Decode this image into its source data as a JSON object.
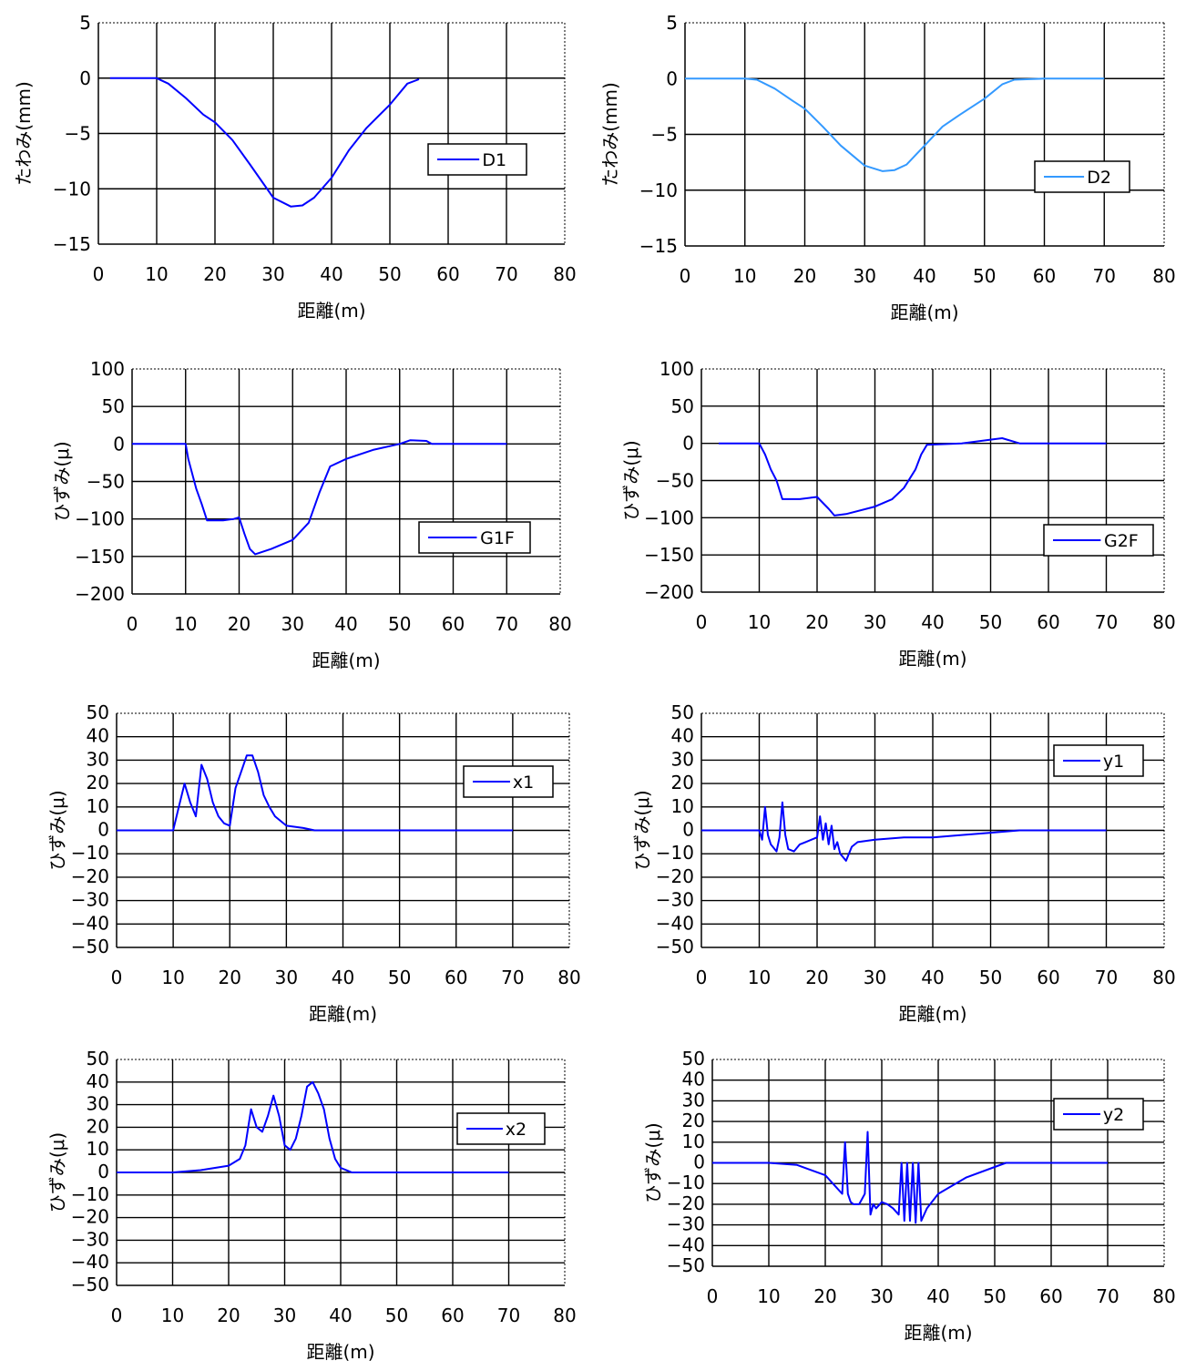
{
  "chart_data": [
    {
      "type": "line",
      "xlabel": "距離(m)",
      "ylabel": "たわみ(mm)",
      "xlim": [
        0,
        80
      ],
      "xticks": [
        0,
        10,
        20,
        30,
        40,
        50,
        60,
        70,
        80
      ],
      "ylim": [
        -15,
        5
      ],
      "yticks": [
        5,
        0,
        -5,
        -10,
        -15
      ],
      "grid": true,
      "legend_position": "right",
      "series": [
        {
          "name": "D1",
          "color": "#0000ff",
          "x": [
            2,
            8,
            10,
            12,
            15,
            18,
            20,
            23,
            26,
            30,
            33,
            35,
            37,
            40,
            43,
            46,
            50,
            53,
            55
          ],
          "y": [
            0,
            0,
            0,
            -0.5,
            -1.8,
            -3.3,
            -4,
            -5.6,
            -7.8,
            -10.8,
            -11.6,
            -11.5,
            -10.8,
            -9,
            -6.5,
            -4.5,
            -2.4,
            -0.5,
            -0.1
          ]
        }
      ]
    },
    {
      "type": "line",
      "xlabel": "距離(m)",
      "ylabel": "たわみ(mm)",
      "xlim": [
        0,
        80
      ],
      "xticks": [
        0,
        10,
        20,
        30,
        40,
        50,
        60,
        70,
        80
      ],
      "ylim": [
        -15,
        5
      ],
      "yticks": [
        5,
        0,
        -5,
        -10,
        -15
      ],
      "grid": true,
      "legend_position": "right",
      "series": [
        {
          "name": "D2",
          "color": "#3399ff",
          "x": [
            0,
            10,
            12,
            15,
            18,
            20,
            23,
            26,
            30,
            33,
            35,
            37,
            40,
            43,
            46,
            50,
            53,
            55,
            60,
            70
          ],
          "y": [
            0,
            0,
            -0.1,
            -0.9,
            -2,
            -2.7,
            -4.3,
            -6,
            -7.8,
            -8.3,
            -8.2,
            -7.7,
            -6,
            -4.3,
            -3.2,
            -1.8,
            -0.5,
            -0.1,
            0,
            0
          ]
        }
      ]
    },
    {
      "type": "line",
      "xlabel": "距離(m)",
      "ylabel": "ひずみ(μ)",
      "xlim": [
        0,
        80
      ],
      "xticks": [
        0,
        10,
        20,
        30,
        40,
        50,
        60,
        70,
        80
      ],
      "ylim": [
        -200,
        100
      ],
      "yticks": [
        100,
        50,
        0,
        -50,
        -100,
        -150,
        -200
      ],
      "grid": true,
      "legend_position": "right",
      "series": [
        {
          "name": "G1F",
          "color": "#0000ff",
          "x": [
            0,
            10,
            10.5,
            12,
            13,
            14,
            17,
            19,
            20,
            21,
            22,
            23,
            26,
            30,
            33,
            35,
            37,
            40,
            45,
            50,
            52,
            55,
            56,
            60,
            70
          ],
          "y": [
            0,
            0,
            -20,
            -60,
            -80,
            -102,
            -102,
            -100,
            -98,
            -120,
            -140,
            -147,
            -140,
            -128,
            -105,
            -65,
            -30,
            -20,
            -8,
            0,
            5,
            4,
            0,
            0,
            0
          ]
        }
      ]
    },
    {
      "type": "line",
      "xlabel": "距離(m)",
      "ylabel": "ひずみ(μ)",
      "xlim": [
        0,
        80
      ],
      "xticks": [
        0,
        10,
        20,
        30,
        40,
        50,
        60,
        70,
        80
      ],
      "ylim": [
        -200,
        100
      ],
      "yticks": [
        100,
        50,
        0,
        -50,
        -100,
        -150,
        -200
      ],
      "grid": true,
      "legend_position": "right",
      "series": [
        {
          "name": "G2F",
          "color": "#0000ff",
          "x": [
            3,
            10,
            11,
            12,
            13,
            14,
            17,
            19,
            20,
            22,
            23,
            25,
            30,
            33,
            35,
            37,
            38,
            39,
            45,
            50,
            52,
            55,
            60,
            70
          ],
          "y": [
            0,
            0,
            -15,
            -35,
            -50,
            -75,
            -75,
            -73,
            -72,
            -88,
            -97,
            -95,
            -85,
            -75,
            -60,
            -35,
            -15,
            -2,
            0,
            5,
            7,
            0,
            0,
            0
          ]
        }
      ]
    },
    {
      "type": "line",
      "xlabel": "距離(m)",
      "ylabel": "ひずみ(μ)",
      "xlim": [
        0,
        80
      ],
      "xticks": [
        0,
        10,
        20,
        30,
        40,
        50,
        60,
        70,
        80
      ],
      "ylim": [
        -50,
        50
      ],
      "yticks": [
        50,
        40,
        30,
        20,
        10,
        0,
        -10,
        -20,
        -30,
        -40,
        -50
      ],
      "grid": true,
      "legend_position": "right",
      "series": [
        {
          "name": "x1",
          "color": "#0000ff",
          "x": [
            0,
            10,
            11,
            12,
            13,
            14,
            15,
            16,
            17,
            18,
            19,
            20,
            21,
            22,
            23,
            24,
            25,
            26,
            27,
            28,
            30,
            33,
            35,
            40,
            50,
            70
          ],
          "y": [
            0,
            0,
            10,
            20,
            12,
            6,
            28,
            22,
            12,
            6,
            3,
            2,
            18,
            25,
            32,
            32,
            25,
            15,
            10,
            6,
            2,
            1,
            0,
            0,
            0,
            0
          ]
        }
      ]
    },
    {
      "type": "line",
      "xlabel": "距離(m)",
      "ylabel": "ひずみ(μ)",
      "xlim": [
        0,
        80
      ],
      "xticks": [
        0,
        10,
        20,
        30,
        40,
        50,
        60,
        70,
        80
      ],
      "ylim": [
        -50,
        50
      ],
      "yticks": [
        50,
        40,
        30,
        20,
        10,
        0,
        -10,
        -20,
        -30,
        -40,
        -50
      ],
      "grid": true,
      "legend_position": "right",
      "series": [
        {
          "name": "y1",
          "color": "#0000ff",
          "x": [
            0,
            10,
            10.5,
            11,
            11.5,
            12,
            13,
            13.5,
            14,
            14.5,
            15,
            16,
            17,
            18,
            19,
            20,
            20.5,
            21,
            21.5,
            22,
            22.5,
            23,
            23.5,
            24,
            25,
            26,
            27,
            30,
            35,
            40,
            45,
            50,
            55,
            60,
            70
          ],
          "y": [
            0,
            0,
            -4,
            10,
            -2,
            -6,
            -9,
            -3,
            12,
            -2,
            -8,
            -9,
            -6,
            -5,
            -4,
            -3,
            6,
            -4,
            3,
            -6,
            2,
            -8,
            -5,
            -10,
            -13,
            -7,
            -5,
            -4,
            -3,
            -3,
            -2,
            -1,
            0,
            0,
            0
          ]
        }
      ]
    },
    {
      "type": "line",
      "xlabel": "距離(m)",
      "ylabel": "ひずみ(μ)",
      "xlim": [
        0,
        80
      ],
      "xticks": [
        0,
        10,
        20,
        30,
        40,
        50,
        60,
        70,
        80
      ],
      "ylim": [
        -50,
        50
      ],
      "yticks": [
        50,
        40,
        30,
        20,
        10,
        0,
        -10,
        -20,
        -30,
        -40,
        -50
      ],
      "grid": true,
      "legend_position": "right",
      "series": [
        {
          "name": "x2",
          "color": "#0000ff",
          "x": [
            0,
            10,
            15,
            20,
            22,
            23,
            24,
            25,
            26,
            27,
            28,
            29,
            30,
            31,
            32,
            33,
            34,
            35,
            36,
            37,
            38,
            39,
            40,
            42,
            45,
            50,
            60,
            70
          ],
          "y": [
            0,
            0,
            1,
            3,
            6,
            12,
            28,
            20,
            18,
            25,
            34,
            25,
            12,
            10,
            15,
            25,
            38,
            40,
            35,
            28,
            15,
            6,
            2,
            0,
            0,
            0,
            0,
            0
          ]
        }
      ]
    },
    {
      "type": "line",
      "xlabel": "距離(m)",
      "ylabel": "ひずみ(μ)",
      "xlim": [
        0,
        80
      ],
      "xticks": [
        0,
        10,
        20,
        30,
        40,
        50,
        60,
        70,
        80
      ],
      "ylim": [
        -50,
        50
      ],
      "yticks": [
        50,
        40,
        30,
        20,
        10,
        0,
        -10,
        -20,
        -30,
        -40,
        -50
      ],
      "grid": true,
      "legend_position": "right",
      "series": [
        {
          "name": "y2",
          "color": "#0000ff",
          "x": [
            0,
            5,
            10,
            15,
            20,
            22,
            23,
            23.5,
            24,
            24.5,
            25,
            26,
            27,
            27.5,
            28,
            28.5,
            29,
            30,
            31,
            32,
            33,
            33.5,
            34,
            34.5,
            35,
            35.5,
            36,
            36.5,
            37,
            38,
            40,
            45,
            50,
            52,
            60,
            70
          ],
          "y": [
            0,
            0,
            0,
            -1,
            -6,
            -12,
            -15,
            10,
            -15,
            -19,
            -20,
            -20,
            -15,
            15,
            -25,
            -20,
            -22,
            -19,
            -20,
            -22,
            -25,
            0,
            -28,
            0,
            -28,
            0,
            -29,
            0,
            -28,
            -22,
            -15,
            -7,
            -2,
            0,
            0,
            0
          ]
        }
      ]
    }
  ]
}
